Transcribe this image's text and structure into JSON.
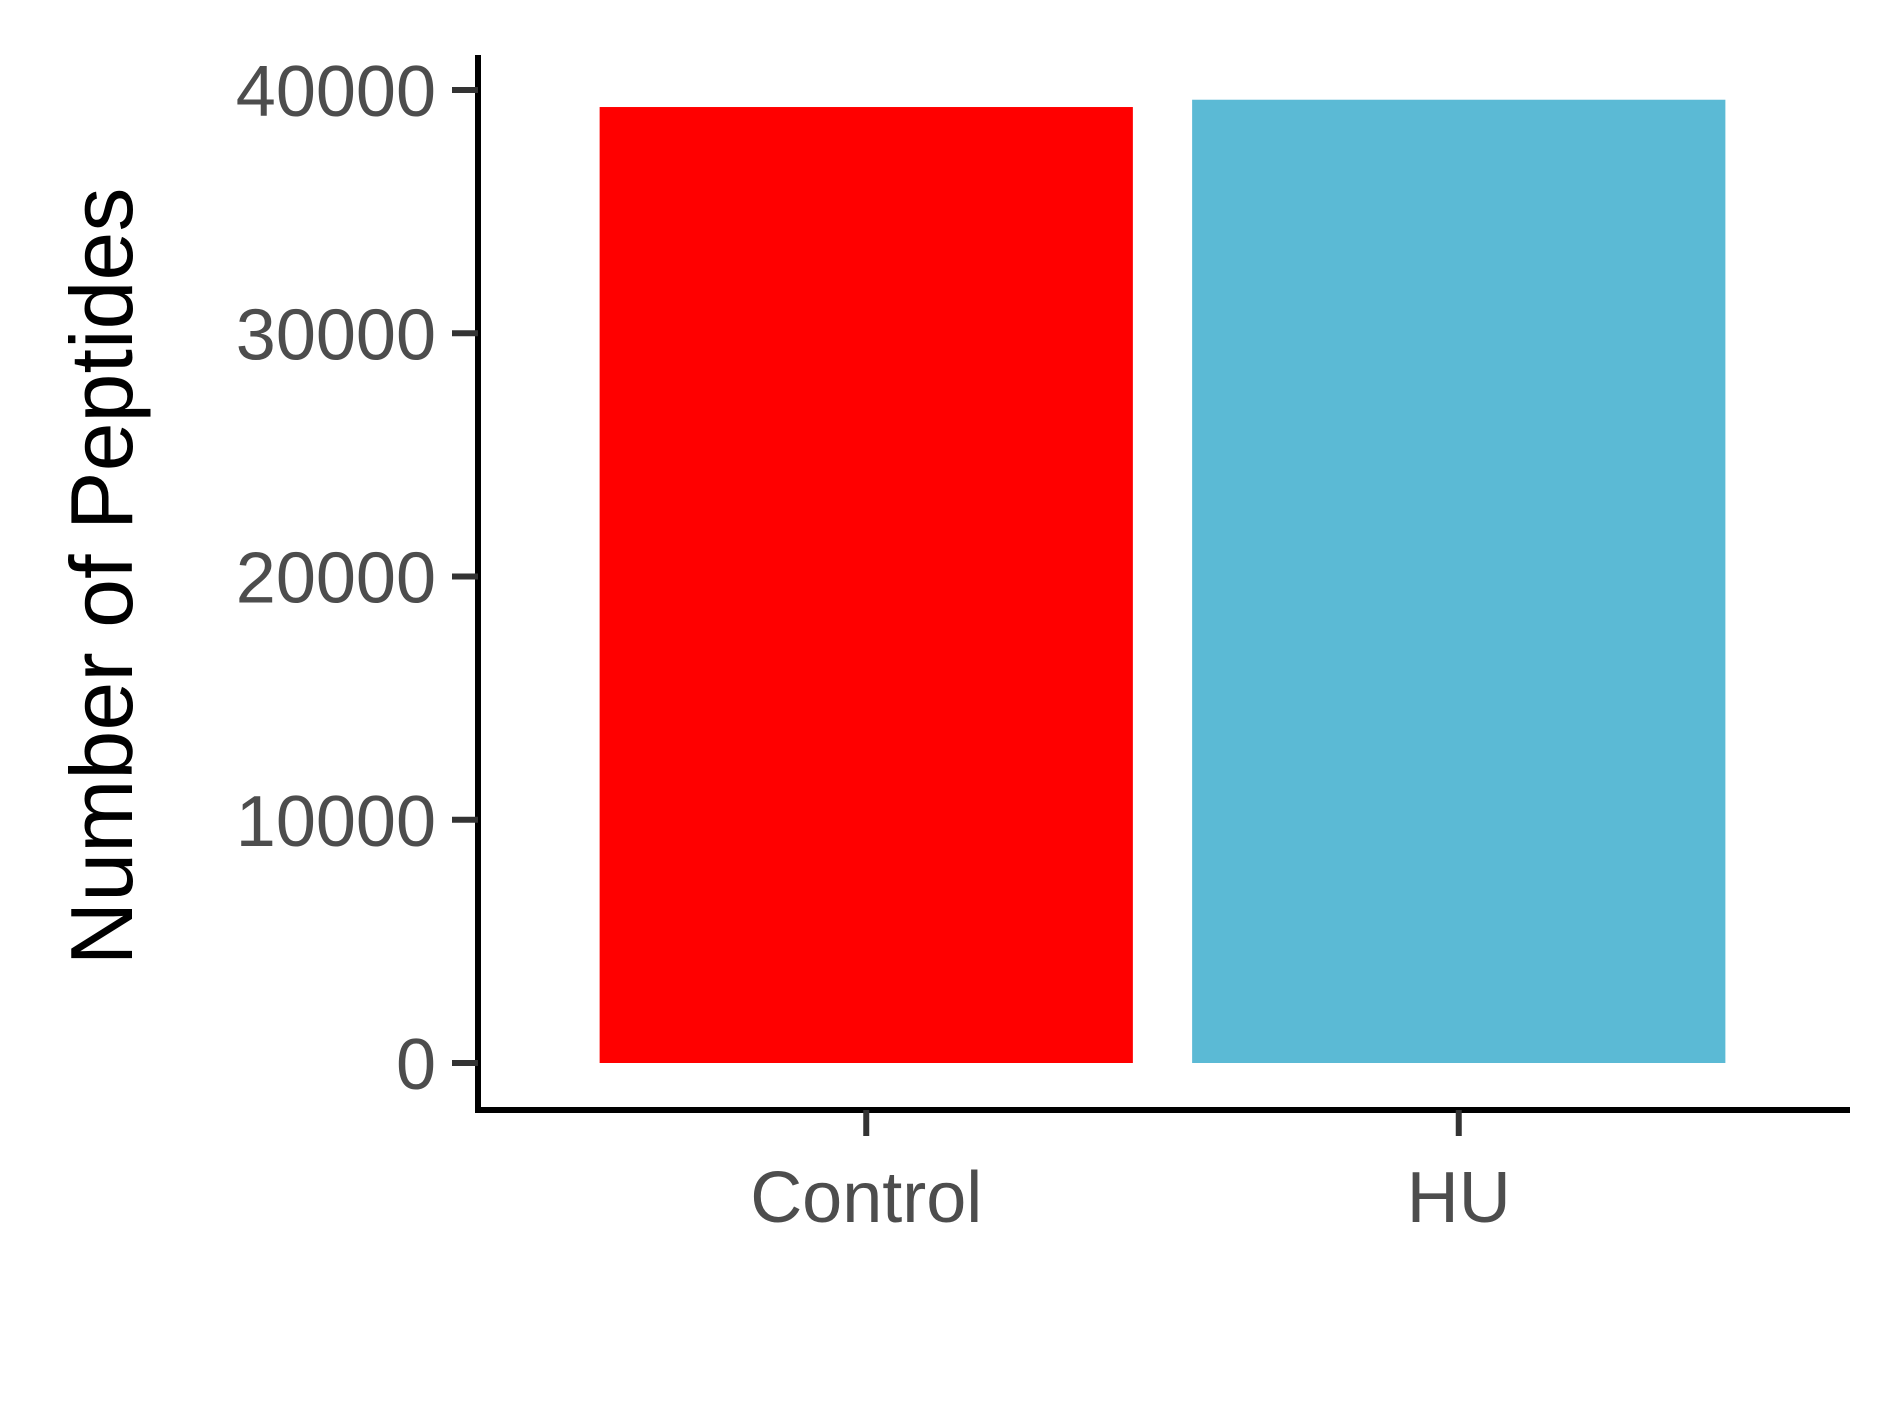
{
  "chart_data": {
    "type": "bar",
    "categories": [
      "Control",
      "HU"
    ],
    "values": [
      39300,
      39600
    ],
    "bar_colors": [
      "#ff0000",
      "#5bbad5"
    ],
    "title": "",
    "xlabel": "",
    "ylabel": "Number of Peptides",
    "ylim": [
      0,
      40000
    ],
    "yticks": [
      0,
      10000,
      20000,
      30000,
      40000
    ],
    "grid": false,
    "legend": "none"
  }
}
